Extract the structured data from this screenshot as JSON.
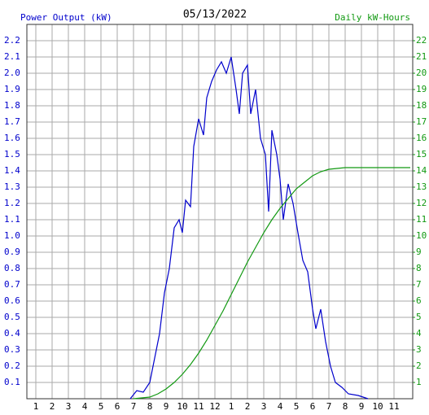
{
  "chart_data": {
    "type": "line",
    "title": "05/13/2022",
    "ylabel": "Power Output (kW)",
    "y2label": "Daily kW-Hours",
    "xlim": [
      0.45,
      24.15
    ],
    "xticks": [
      1,
      2,
      3,
      4,
      5,
      6,
      7,
      8,
      9,
      10,
      11,
      12,
      {
        "value": 13,
        "label": "1"
      },
      {
        "value": 14,
        "label": "2"
      },
      {
        "value": 15,
        "label": "3"
      },
      {
        "value": 16,
        "label": "4"
      },
      {
        "value": 17,
        "label": "5"
      },
      {
        "value": 18,
        "label": "6"
      },
      {
        "value": 19,
        "label": "7"
      },
      {
        "value": 20,
        "label": "8"
      },
      {
        "value": 21,
        "label": "9"
      },
      {
        "value": 22,
        "label": "10"
      },
      {
        "value": 23,
        "label": "11"
      }
    ],
    "ylim": [
      0,
      2.3
    ],
    "yticks": [
      0.1,
      0.2,
      0.3,
      0.4,
      0.5,
      0.6,
      0.7,
      0.8,
      0.9,
      {
        "value": 1,
        "label": "1.0"
      },
      1.1,
      1.2,
      1.3,
      1.4,
      1.5,
      1.6,
      1.7,
      1.8,
      1.9,
      {
        "value": 2,
        "label": "2.0"
      },
      2.1,
      2.2
    ],
    "y2lim": [
      0,
      23
    ],
    "y2ticks": [
      1,
      2,
      3,
      4,
      5,
      6,
      7,
      8,
      9,
      10,
      11,
      12,
      13,
      14,
      15,
      16,
      17,
      18,
      19,
      20,
      21,
      22
    ],
    "grid": true,
    "series": [
      {
        "color": "#0000cc",
        "x": [
          6.8,
          7.2,
          7.6,
          8.0,
          8.3,
          8.6,
          8.9,
          9.2,
          9.5,
          9.8,
          10.0,
          10.2,
          10.5,
          10.7,
          11.0,
          11.3,
          11.5,
          11.8,
          12.1,
          12.4,
          12.7,
          13.0,
          13.3,
          13.5,
          13.7,
          14.0,
          14.2,
          14.5,
          14.8,
          15.1,
          15.3,
          15.5,
          15.8,
          16.0,
          16.2,
          16.5,
          16.8,
          17.1,
          17.4,
          17.7,
          18.0,
          18.2,
          18.5,
          18.8,
          19.1,
          19.4,
          19.8,
          20.2,
          20.8,
          21.4
        ],
        "values": [
          0,
          0.05,
          0.04,
          0.1,
          0.25,
          0.4,
          0.65,
          0.8,
          1.05,
          1.1,
          1.02,
          1.22,
          1.18,
          1.55,
          1.72,
          1.62,
          1.85,
          1.95,
          2.02,
          2.07,
          2.0,
          2.1,
          1.9,
          1.75,
          2.0,
          2.05,
          1.75,
          1.9,
          1.6,
          1.5,
          1.15,
          1.65,
          1.5,
          1.35,
          1.1,
          1.32,
          1.2,
          1.02,
          0.85,
          0.78,
          0.55,
          0.43,
          0.55,
          0.35,
          0.2,
          0.1,
          0.07,
          0.03,
          0.02,
          0
        ]
      },
      {
        "color": "#119911",
        "axis": "y2",
        "x": [
          7,
          8,
          8.5,
          9,
          9.5,
          10,
          10.5,
          11,
          11.5,
          12,
          12.5,
          13,
          13.5,
          14,
          14.5,
          15,
          15.5,
          16,
          16.5,
          17,
          17.5,
          18,
          18.5,
          19,
          19.5,
          20,
          21,
          22,
          23,
          24
        ],
        "values": [
          0,
          0.1,
          0.3,
          0.6,
          1.0,
          1.5,
          2.1,
          2.8,
          3.6,
          4.5,
          5.4,
          6.4,
          7.4,
          8.4,
          9.3,
          10.2,
          11.0,
          11.7,
          12.3,
          12.9,
          13.3,
          13.7,
          13.95,
          14.1,
          14.15,
          14.2,
          14.2,
          14.2,
          14.2,
          14.2
        ]
      }
    ]
  }
}
